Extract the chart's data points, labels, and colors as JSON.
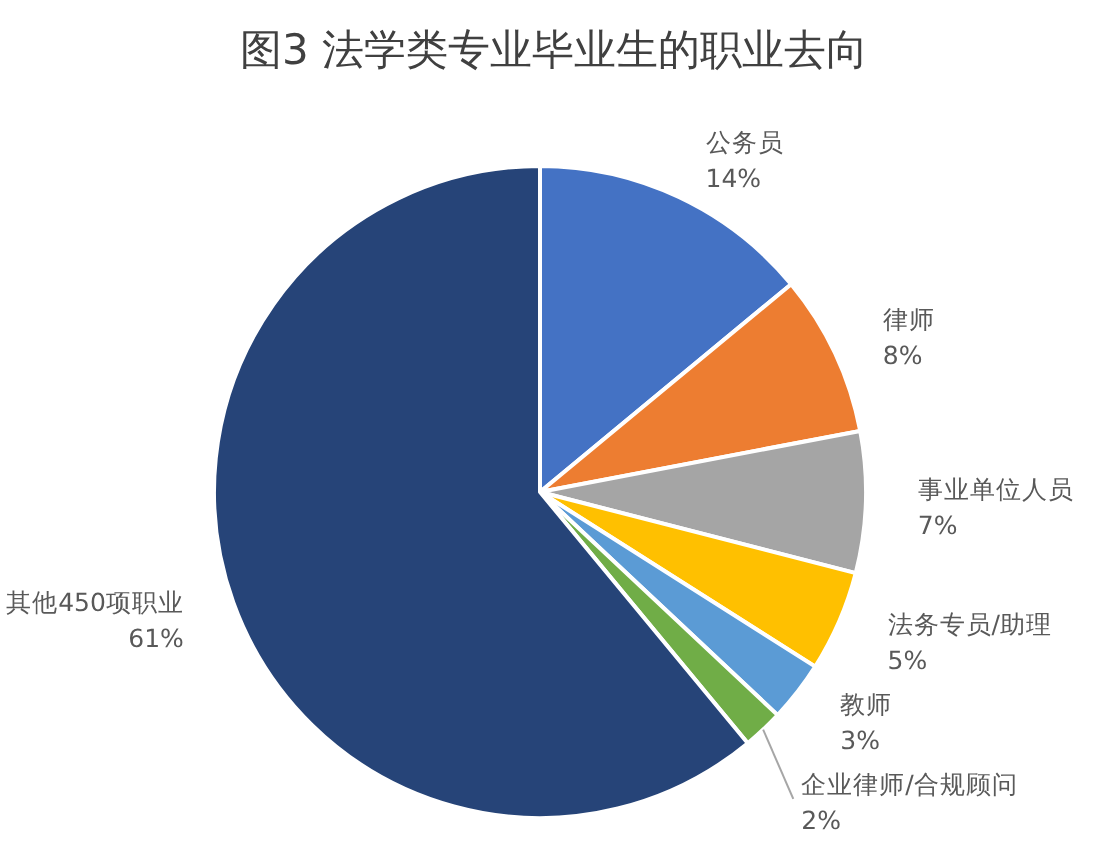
{
  "chart_data": {
    "type": "pie",
    "title": "图3 法学类专业毕业生的职业去向",
    "categories": [
      "公务员",
      "律师",
      "事业单位人员",
      "法务专员/助理",
      "教师",
      "企业律师/合规顾问",
      "其他450项职业"
    ],
    "values": [
      14,
      8,
      7,
      5,
      3,
      2,
      61
    ],
    "value_labels": [
      "14%",
      "8%",
      "7%",
      "5%",
      "3%",
      "2%",
      "61%"
    ],
    "colors": [
      "#4472c4",
      "#ed7d31",
      "#a5a5a5",
      "#ffc000",
      "#5b9bd5",
      "#70ad47",
      "#264478"
    ]
  }
}
